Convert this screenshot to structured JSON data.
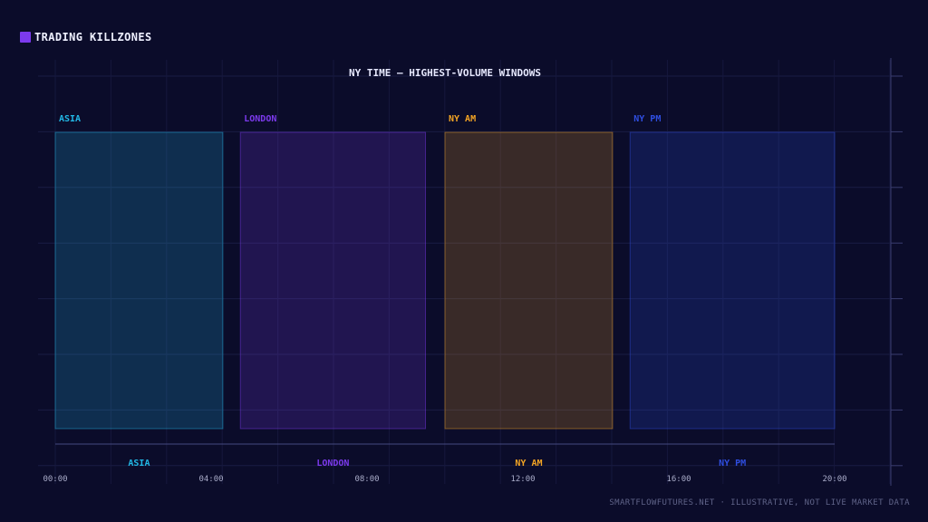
{
  "header": {
    "title": "TRADING KILLZONES",
    "square_color": "#7c3aed"
  },
  "footer": {
    "text": "SMARTFLOWFUTURES.NET · ILLUSTRATIVE, NOT LIVE MARKET DATA"
  },
  "chart_data": {
    "type": "bar",
    "title": "NY TIME — HIGHEST-VOLUME WINDOWS",
    "xlabel": "",
    "ylabel": "",
    "xlim": [
      "00:00",
      "20:30"
    ],
    "x_ticks": [
      "00:00",
      "04:00",
      "08:00",
      "12:00",
      "16:00",
      "20:00"
    ],
    "grid": true,
    "legend": "none",
    "series": [
      {
        "name": "ASIA",
        "start": "00:00",
        "end": "04:18",
        "color": "#22b8e6"
      },
      {
        "name": "LONDON",
        "start": "04:45",
        "end": "09:30",
        "color": "#7c3aed"
      },
      {
        "name": "NY AM",
        "start": "10:00",
        "end": "14:18",
        "color": "#f5a524"
      },
      {
        "name": "NY PM",
        "start": "14:45",
        "end": "20:00",
        "color": "#2f4ee0"
      }
    ]
  }
}
